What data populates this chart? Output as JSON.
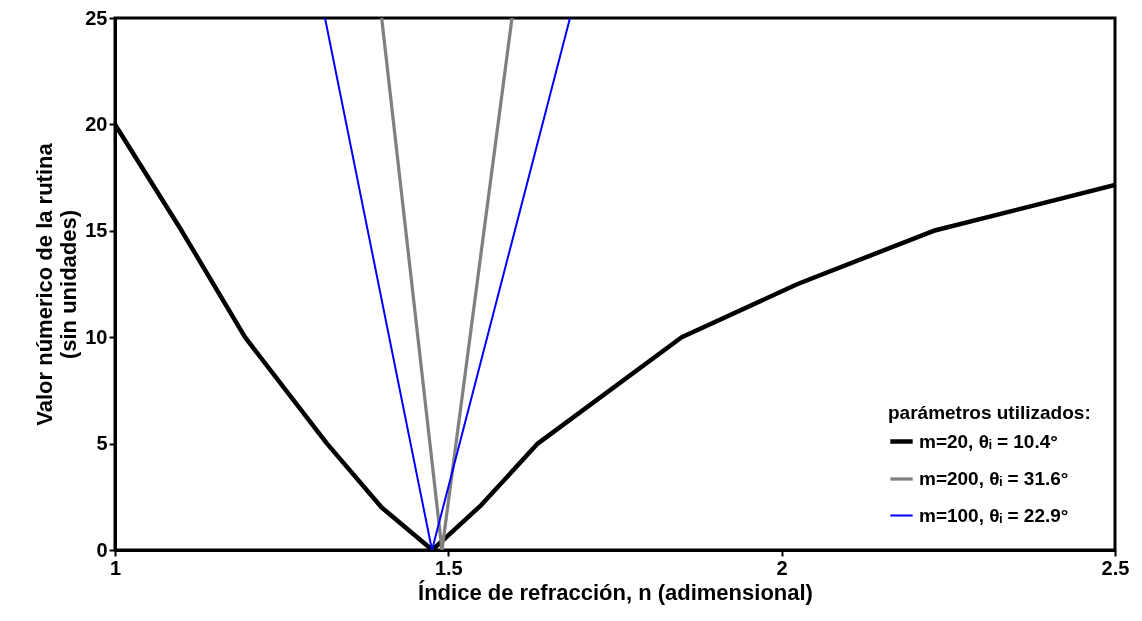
{
  "chart_data": {
    "type": "line",
    "xlabel": "Índice de refracción, n (adimensional)",
    "ylabel": "Valor númerico de la rutina\n(sin unidades)",
    "legend_title": "parámetros utilizados:",
    "series": [
      {
        "name": "m=20, θᵢ = 10.4°",
        "color": "#000000",
        "x": [
          1,
          1.1,
          1.195,
          1.318,
          1.4,
          1.476,
          1.549,
          1.634,
          1.85,
          2.024,
          2.228,
          2.5
        ],
        "values": [
          20,
          15,
          10,
          5,
          2,
          0,
          2.1,
          5,
          10,
          12.5,
          15,
          17.15
        ]
      },
      {
        "name": "m=200, θᵢ = 31.6°",
        "color": "#808080",
        "x": [
          1.4,
          1.4905,
          1.5955
        ],
        "values": [
          25,
          0,
          25
        ]
      },
      {
        "name": "m=100, θᵢ = 22.9°",
        "color": "#0000ff",
        "x": [
          1.315,
          1.4755,
          1.6825
        ],
        "values": [
          25,
          0,
          25
        ]
      }
    ],
    "xlim": [
      1,
      2.5
    ],
    "xticks": [
      1,
      1.5,
      2,
      2.5
    ],
    "ylim": [
      0,
      25
    ],
    "yticks": [
      0,
      5,
      10,
      15,
      20,
      25
    ],
    "grid": false,
    "legend": "bottom right",
    "line_style": "solid"
  }
}
